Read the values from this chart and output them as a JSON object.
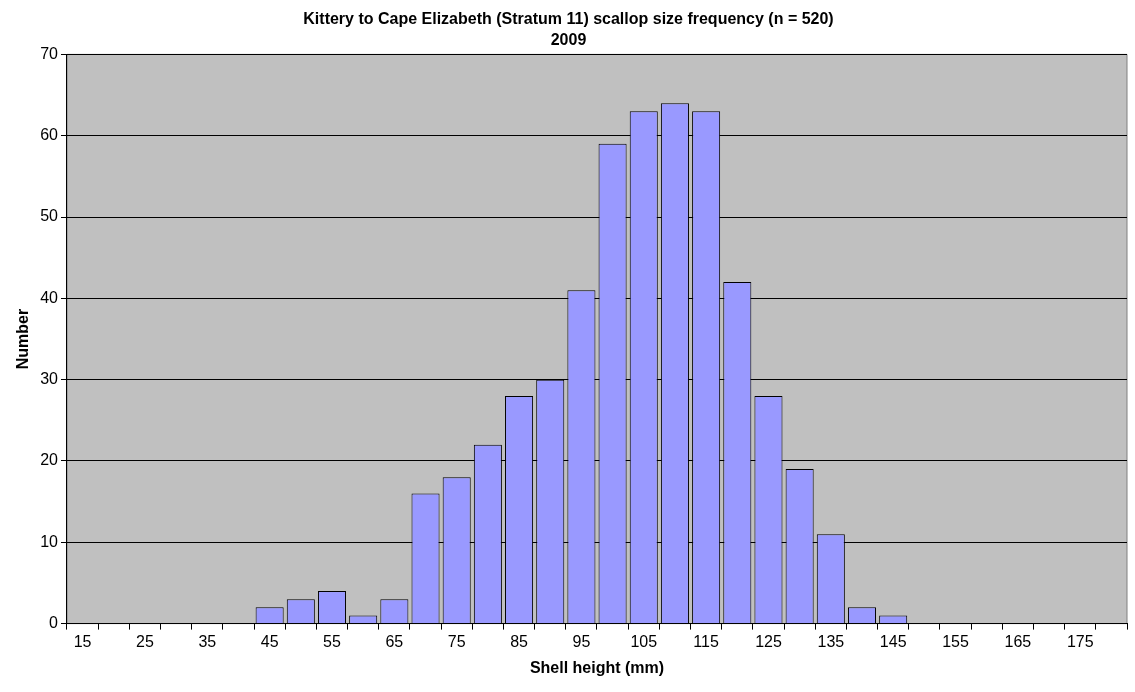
{
  "chart_data": {
    "type": "bar",
    "title": "Kittery to Cape Elizabeth (Stratum 11) scallop size frequency (n = 520)",
    "subtitle": "2009",
    "xlabel": "Shell height (mm)",
    "ylabel": "Number",
    "categories": [
      "15",
      null,
      "25",
      null,
      "35",
      null,
      "45",
      null,
      "55",
      null,
      "65",
      null,
      "75",
      null,
      "85",
      null,
      "95",
      null,
      "105",
      null,
      "115",
      null,
      "125",
      null,
      "135",
      null,
      "145",
      null,
      "155",
      null,
      "165",
      null,
      "175",
      null
    ],
    "values": [
      0,
      0,
      0,
      0,
      0,
      0,
      2,
      3,
      4,
      1,
      3,
      16,
      18,
      22,
      28,
      30,
      41,
      59,
      63,
      64,
      63,
      42,
      28,
      19,
      11,
      2,
      1,
      0,
      0,
      0,
      0,
      0,
      0,
      0
    ],
    "color": "#9999ff",
    "ylim": [
      0,
      70
    ],
    "yticks": [
      0,
      10,
      20,
      30,
      40,
      50,
      60,
      70
    ],
    "grid": "y",
    "legend": false
  }
}
